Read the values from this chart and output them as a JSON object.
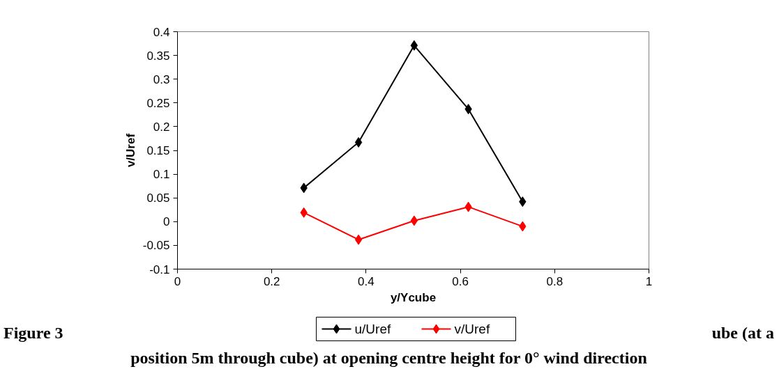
{
  "chart_data": {
    "type": "line",
    "xlabel": "y/Ycube",
    "ylabel": "v/Uref",
    "x": [
      0.268,
      0.384,
      0.502,
      0.617,
      0.732
    ],
    "series": [
      {
        "name": "u/Uref",
        "color": "#000000",
        "values": [
          0.071,
          0.167,
          0.371,
          0.237,
          0.042
        ]
      },
      {
        "name": "v/Uref",
        "color": "#ff0000",
        "values": [
          0.019,
          -0.038,
          0.002,
          0.031,
          -0.01
        ]
      }
    ],
    "xlim": [
      0,
      1
    ],
    "xticks": [
      0,
      0.2,
      0.4,
      0.6,
      0.8,
      1
    ],
    "ylim": [
      -0.1,
      0.4
    ],
    "yticks": [
      -0.1,
      -0.05,
      0,
      0.05,
      0.1,
      0.15,
      0.2,
      0.25,
      0.3,
      0.35,
      0.4
    ],
    "grid": false,
    "legend": "bottom",
    "marker": "diamond",
    "line_style": "solid",
    "annotations": [
      "Figure 3",
      "ube (at a",
      "position 5m through cube) at opening centre height for 0° wind direction"
    ]
  }
}
